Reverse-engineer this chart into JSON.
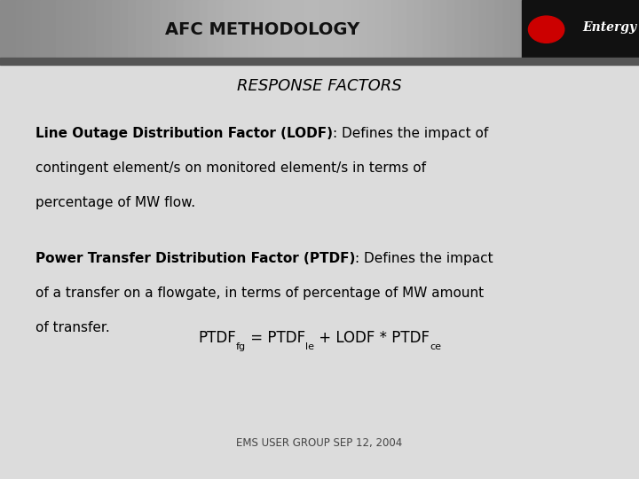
{
  "title": "AFC METHODOLOGY",
  "subtitle": "RESPONSE FACTORS",
  "header_bg_color_light": "#aaaaaa",
  "header_bg_color_dark": "#666666",
  "header_text_color": "#111111",
  "body_bg_color": "#dcdcdc",
  "body_text_color": "#000000",
  "lodf_bold_line1": "Line Outage Distribution Factor (LODF)",
  "lodf_rest_line1": ": Defines the impact of",
  "lodf_line2": "contingent element/s on monitored element/s in terms of",
  "lodf_line3": "percentage of MW flow.",
  "ptdf_bold_line1": "Power Transfer Distribution Factor (PTDF)",
  "ptdf_rest_line1": ": Defines the impact",
  "ptdf_line2": "of a transfer on a flowgate, in terms of percentage of MW amount",
  "ptdf_line3": "of transfer.",
  "footer": "EMS USER GROUP SEP 12, 2004",
  "logo_bg_color": "#111111",
  "entergy_color": "#ffffff",
  "red_color": "#cc0000"
}
